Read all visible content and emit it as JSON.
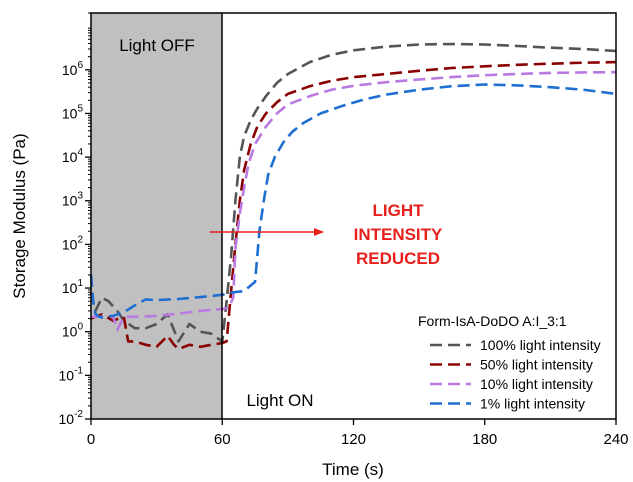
{
  "chart_data": {
    "type": "line",
    "title": "",
    "xlabel": "Time (s)",
    "ylabel": "Storage Modulus (Pa)",
    "xlim": [
      0,
      240
    ],
    "ylim": [
      0.01,
      20000000
    ],
    "y_scale": "log",
    "x_ticks": [
      "0",
      "60",
      "120",
      "180",
      "240"
    ],
    "y_ticks": [
      {
        "mantissa": "10",
        "exp": "-2"
      },
      {
        "mantissa": "10",
        "exp": "-1"
      },
      {
        "mantissa": "10",
        "exp": "0"
      },
      {
        "mantissa": "10",
        "exp": "1"
      },
      {
        "mantissa": "10",
        "exp": "2"
      },
      {
        "mantissa": "10",
        "exp": "3"
      },
      {
        "mantissa": "10",
        "exp": "4"
      },
      {
        "mantissa": "10",
        "exp": "5"
      },
      {
        "mantissa": "10",
        "exp": "6"
      }
    ],
    "grid": false,
    "shaded_region": {
      "x": [
        0,
        60
      ],
      "label": "Light OFF",
      "color": "#c0c0c0"
    },
    "annotations": {
      "light_off": "Light OFF",
      "light_on": "Light ON",
      "arrow_text": [
        "LIGHT",
        "INTENSITY",
        "REDUCED"
      ],
      "arrow_color": "#e8201c"
    },
    "legend": {
      "title": "Form-IsA-DoDO A:I_3:1",
      "position": "bottom-right"
    },
    "series": [
      {
        "name": "100% light intensity",
        "color": "#555555",
        "x": [
          0,
          2,
          5,
          8,
          12,
          15,
          20,
          25,
          30,
          35,
          40,
          45,
          50,
          55,
          60,
          62,
          64,
          66,
          68,
          70,
          73,
          76,
          80,
          85,
          90,
          100,
          110,
          120,
          135,
          150,
          165,
          180,
          195,
          210,
          225,
          240
        ],
        "y": [
          8,
          3,
          6,
          5,
          3,
          1.8,
          1.2,
          1.2,
          1.5,
          2.5,
          0.6,
          1.5,
          1,
          0.9,
          0.6,
          5,
          50,
          1000,
          10000,
          30000,
          70000,
          130000,
          250000,
          500000,
          800000,
          1500000,
          2200000,
          2800000,
          3400000,
          3800000,
          3900000,
          3800000,
          3500000,
          3200000,
          3000000,
          2700000
        ]
      },
      {
        "name": "50% light intensity",
        "color": "#8b0000",
        "x": [
          0,
          5,
          10,
          15,
          17,
          20,
          25,
          30,
          35,
          38,
          40,
          45,
          50,
          55,
          60,
          62,
          64,
          66,
          68,
          70,
          73,
          76,
          80,
          85,
          90,
          100,
          110,
          120,
          135,
          150,
          165,
          180,
          195,
          210,
          225,
          240
        ],
        "y": [
          2,
          2.5,
          1.8,
          2.2,
          0.6,
          0.6,
          0.5,
          0.45,
          0.8,
          0.5,
          0.4,
          0.5,
          0.45,
          0.5,
          0.55,
          0.6,
          8,
          100,
          1000,
          5000,
          20000,
          50000,
          100000,
          180000,
          280000,
          420000,
          560000,
          680000,
          800000,
          950000,
          1100000,
          1200000,
          1300000,
          1380000,
          1450000,
          1500000
        ]
      },
      {
        "name": "10% light intensity",
        "color": "#b979e0",
        "x": [
          0,
          5,
          10,
          12,
          15,
          20,
          30,
          40,
          50,
          60,
          63,
          65,
          66,
          67,
          68,
          70,
          72,
          75,
          80,
          85,
          90,
          100,
          110,
          120,
          135,
          150,
          165,
          180,
          195,
          210,
          225,
          240
        ],
        "y": [
          2.2,
          2.2,
          2.3,
          1.1,
          2.2,
          2.2,
          2.3,
          2.6,
          3,
          3.3,
          3.5,
          6,
          80,
          200,
          500,
          2000,
          7000,
          20000,
          50000,
          100000,
          160000,
          250000,
          350000,
          430000,
          520000,
          600000,
          680000,
          750000,
          800000,
          850000,
          870000,
          880000
        ]
      },
      {
        "name": "1% light intensity",
        "color": "#1f6fd1",
        "x": [
          0,
          1,
          2,
          3,
          5,
          10,
          15,
          20,
          25,
          30,
          40,
          50,
          60,
          65,
          70,
          75,
          77,
          79,
          81,
          84,
          88,
          92,
          97,
          105,
          115,
          125,
          135,
          150,
          165,
          180,
          195,
          210,
          225,
          240
        ],
        "y": [
          20,
          5,
          2.6,
          2.3,
          2.1,
          2.3,
          2.8,
          4,
          5.5,
          5.3,
          5.6,
          6.2,
          7,
          8,
          8.5,
          14,
          200,
          1000,
          4000,
          10000,
          22000,
          38000,
          60000,
          100000,
          150000,
          210000,
          270000,
          350000,
          420000,
          460000,
          440000,
          400000,
          350000,
          280000
        ]
      }
    ]
  }
}
